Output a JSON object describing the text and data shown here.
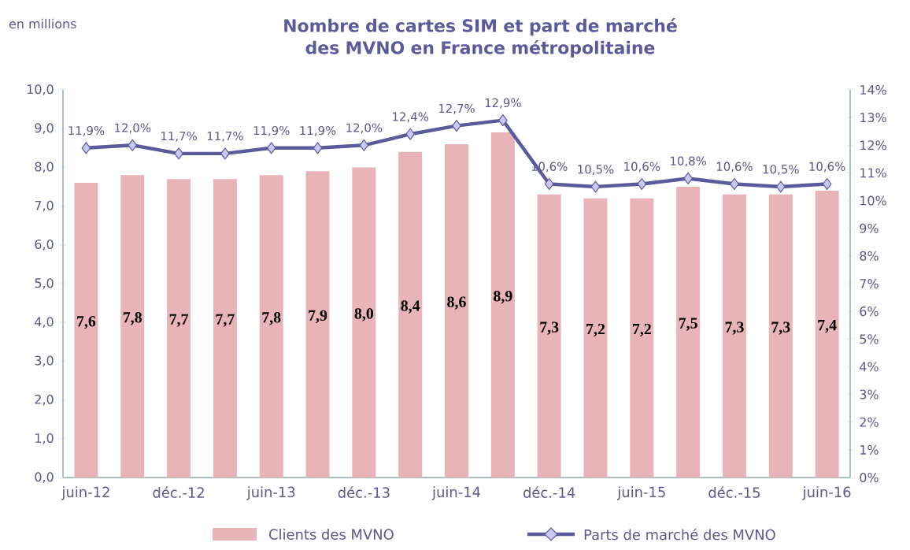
{
  "chart_data": {
    "type": "bar",
    "title": "Nombre de cartes SIM et part de marché des MVNO en France métropolitaine",
    "ylabel": "en millions",
    "categories": [
      "juin-12",
      null,
      "déc.-12",
      null,
      "juin-13",
      null,
      "déc.-13",
      null,
      "juin-14",
      null,
      "déc.-14",
      null,
      "juin-15",
      null,
      "déc.-15",
      null,
      "juin-16"
    ],
    "series": [
      {
        "name": "Clients des MVNO",
        "color": "#e8b4b8",
        "values": [
          7.6,
          7.8,
          7.7,
          7.7,
          7.8,
          7.9,
          8.0,
          8.4,
          8.6,
          8.9,
          7.3,
          7.2,
          7.2,
          7.5,
          7.3,
          7.3,
          7.4
        ],
        "value_labels": [
          "7,6",
          "7,8",
          "7,7",
          "7,7",
          "7,8",
          "7,9",
          "8,0",
          "8,4",
          "8,6",
          "8,9",
          "7,3",
          "7,2",
          "7,2",
          "7,5",
          "7,3",
          "7,3",
          "7,4"
        ]
      },
      {
        "name": "Parts de marché des MVNO",
        "type": "line",
        "axis": "y2",
        "color": "#5b5a9a",
        "marker": "diamond",
        "line_style": "solid",
        "values": [
          11.9,
          12.0,
          11.7,
          11.7,
          11.9,
          11.9,
          12.0,
          12.4,
          12.7,
          12.9,
          10.6,
          10.5,
          10.6,
          10.8,
          10.6,
          10.5,
          10.6
        ],
        "value_labels": [
          "11,9%",
          "12,0%",
          "11,7%",
          "11,7%",
          "11,9%",
          "11,9%",
          "12,0%",
          "12,4%",
          "12,7%",
          "12,9%",
          "10,6%",
          "10,5%",
          "10,6%",
          "10,8%",
          "10,6%",
          "10,5%",
          "10,6%"
        ]
      }
    ],
    "ylim": [
      0,
      10
    ],
    "yticks": [
      {
        "value": 0,
        "label": "0,0"
      },
      {
        "value": 1,
        "label": "1,0"
      },
      {
        "value": 2,
        "label": "2,0"
      },
      {
        "value": 3,
        "label": "3,0"
      },
      {
        "value": 4,
        "label": "4,0"
      },
      {
        "value": 5,
        "label": "5,0"
      },
      {
        "value": 6,
        "label": "6,0"
      },
      {
        "value": 7,
        "label": "7,0"
      },
      {
        "value": 8,
        "label": "8,0"
      },
      {
        "value": 9,
        "label": "9,0"
      },
      {
        "value": 10,
        "label": "10,0"
      }
    ],
    "y2lim": [
      0,
      14
    ],
    "y2ticks": [
      {
        "value": 0,
        "label": "0%"
      },
      {
        "value": 1,
        "label": "1%"
      },
      {
        "value": 2,
        "label": "2%"
      },
      {
        "value": 3,
        "label": "3%"
      },
      {
        "value": 4,
        "label": "4%"
      },
      {
        "value": 5,
        "label": "5%"
      },
      {
        "value": 6,
        "label": "6%"
      },
      {
        "value": 7,
        "label": "7%"
      },
      {
        "value": 8,
        "label": "8%"
      },
      {
        "value": 9,
        "label": "9%"
      },
      {
        "value": 10,
        "label": "10%"
      },
      {
        "value": 11,
        "label": "11%"
      },
      {
        "value": 12,
        "label": "12%"
      },
      {
        "value": 13,
        "label": "13%"
      },
      {
        "value": 14,
        "label": "14%"
      }
    ],
    "grid": false,
    "legend": "bottom"
  }
}
